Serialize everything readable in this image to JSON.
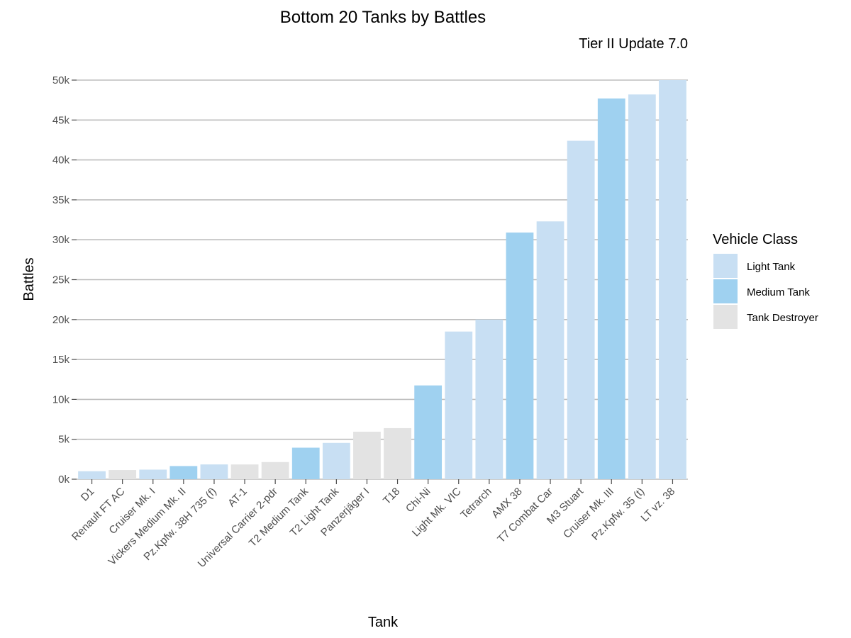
{
  "chart_data": {
    "type": "bar",
    "title": "Bottom 20 Tanks by Battles",
    "subtitle": "Tier II Update 7.0",
    "xlabel": "Tank",
    "ylabel": "Battles",
    "ylim": [
      0,
      50000
    ],
    "yticks": [
      0,
      5000,
      10000,
      15000,
      20000,
      25000,
      30000,
      35000,
      40000,
      45000,
      50000
    ],
    "ytick_labels": [
      "0k",
      "5k",
      "10k",
      "15k",
      "20k",
      "25k",
      "30k",
      "35k",
      "40k",
      "45k",
      "50k"
    ],
    "grid": true,
    "legend": {
      "title": "Vehicle Class",
      "position": "right",
      "entries": [
        {
          "label": "Light Tank",
          "color": "#c8dff3"
        },
        {
          "label": "Medium Tank",
          "color": "#9fd1f0"
        },
        {
          "label": "Tank Destroyer",
          "color": "#e3e3e3"
        }
      ]
    },
    "categories": [
      "D1",
      "Renault FT AC",
      "Cruiser Mk. I",
      "Vickers Medium Mk. II",
      "Pz.Kpfw. 38H 735 (f)",
      "AT-1",
      "Universal Carrier 2-pdr",
      "T2 Medium Tank",
      "T2 Light Tank",
      "Panzerjäger I",
      "T18",
      "Chi-Ni",
      "Light Mk. VIC",
      "Tetrarch",
      "AMX 38",
      "T7 Combat Car",
      "M3 Stuart",
      "Cruiser Mk. III",
      "Pz.Kpfw. 35 (t)",
      "LT vz. 38"
    ],
    "values": [
      1000,
      1150,
      1200,
      1650,
      1850,
      1850,
      2150,
      3950,
      4550,
      5950,
      6400,
      11750,
      18500,
      20000,
      30900,
      32300,
      42400,
      47700,
      48200,
      50000
    ],
    "classes": [
      "Light Tank",
      "Tank Destroyer",
      "Light Tank",
      "Medium Tank",
      "Light Tank",
      "Tank Destroyer",
      "Tank Destroyer",
      "Medium Tank",
      "Light Tank",
      "Tank Destroyer",
      "Tank Destroyer",
      "Medium Tank",
      "Light Tank",
      "Light Tank",
      "Medium Tank",
      "Light Tank",
      "Light Tank",
      "Medium Tank",
      "Light Tank",
      "Light Tank"
    ]
  }
}
